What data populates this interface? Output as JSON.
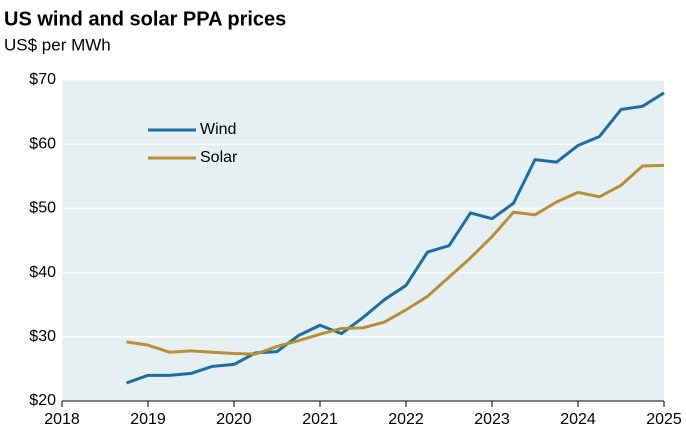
{
  "chart_data": {
    "type": "line",
    "title": "US wind and solar PPA prices",
    "subtitle": "US$ per MWh",
    "x": [
      2018.75,
      2019.0,
      2019.25,
      2019.5,
      2019.75,
      2020.0,
      2020.25,
      2020.5,
      2020.75,
      2021.0,
      2021.25,
      2021.5,
      2021.75,
      2022.0,
      2022.25,
      2022.5,
      2022.75,
      2023.0,
      2023.25,
      2023.5,
      2023.75,
      2024.0,
      2024.25,
      2024.5,
      2024.75,
      2025.0
    ],
    "series": [
      {
        "name": "Wind",
        "color": "#1f6ca3",
        "values": [
          22.8,
          24.0,
          24.0,
          24.3,
          25.4,
          25.7,
          27.5,
          27.7,
          30.2,
          31.8,
          30.5,
          33.0,
          35.8,
          38.0,
          43.2,
          44.2,
          49.3,
          48.4,
          50.8,
          57.6,
          57.2,
          59.8,
          61.2,
          65.4,
          65.9,
          68.0
        ]
      },
      {
        "name": "Solar",
        "color": "#b58e35",
        "values": [
          29.2,
          28.7,
          27.6,
          27.8,
          27.6,
          27.4,
          27.3,
          28.5,
          29.4,
          30.4,
          31.3,
          31.4,
          32.3,
          34.2,
          36.3,
          39.3,
          42.3,
          45.6,
          49.4,
          49.0,
          51.0,
          52.5,
          51.8,
          53.6,
          56.6,
          56.7
        ]
      }
    ],
    "xlim": [
      2018,
      2025
    ],
    "xticks": [
      2018,
      2019,
      2020,
      2021,
      2022,
      2023,
      2024,
      2025
    ],
    "ylim": [
      20,
      70
    ],
    "yticks": [
      {
        "value": 20,
        "label": "$20"
      },
      {
        "value": 30,
        "label": "$30"
      },
      {
        "value": 40,
        "label": "$40"
      },
      {
        "value": 50,
        "label": "$50"
      },
      {
        "value": 60,
        "label": "$60"
      },
      {
        "value": 70,
        "label": "$70"
      }
    ],
    "grid": true,
    "legend": "top-left"
  }
}
